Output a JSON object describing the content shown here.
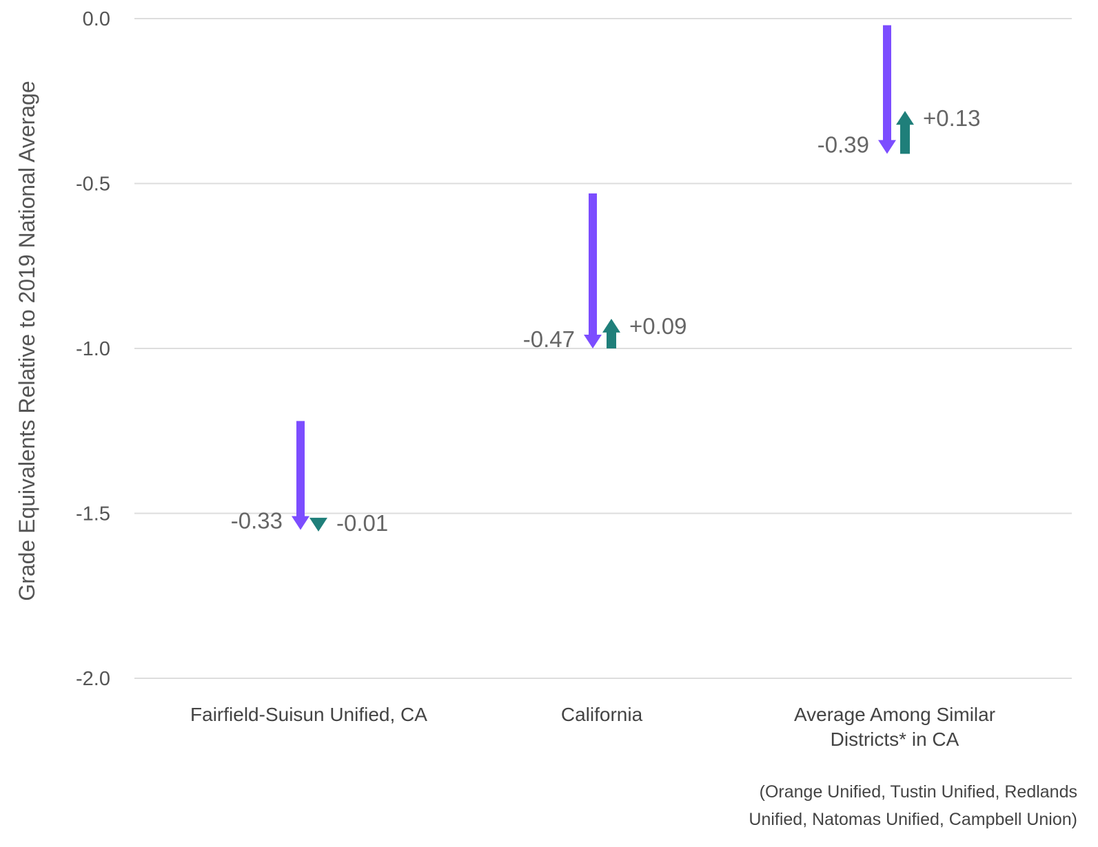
{
  "chart_data": {
    "type": "arrow",
    "ylabel": "Grade Equivalents Relative to 2019 National Average",
    "ylim": [
      -2.0,
      0.0
    ],
    "yticks": [
      "0.0",
      "-0.5",
      "-1.0",
      "-1.5",
      "-2.0"
    ],
    "grid": true,
    "categories": [
      {
        "label_lines": [
          "Fairfield-Suisun Unified, CA"
        ],
        "decline": {
          "start": -1.22,
          "end": -1.55,
          "label": "-0.33"
        },
        "recovery": {
          "start": -1.53,
          "end": -1.54,
          "label": "-0.01"
        }
      },
      {
        "label_lines": [
          "California"
        ],
        "decline": {
          "start": -0.53,
          "end": -1.0,
          "label": "-0.47"
        },
        "recovery": {
          "start": -1.0,
          "end": -0.91,
          "label": "+0.09"
        }
      },
      {
        "label_lines": [
          "Average Among Similar",
          "Districts* in CA"
        ],
        "decline": {
          "start": -0.02,
          "end": -0.41,
          "label": "-0.39"
        },
        "recovery": {
          "start": -0.41,
          "end": -0.28,
          "label": "+0.13"
        }
      }
    ],
    "footnote_lines": [
      "(Orange Unified, Tustin Unified, Redlands",
      "Unified, Natomas Unified, Campbell Union)"
    ],
    "colors": {
      "decline": "#7c4dff",
      "recovery": "#1f7f7a",
      "grid": "#dddddd"
    }
  }
}
